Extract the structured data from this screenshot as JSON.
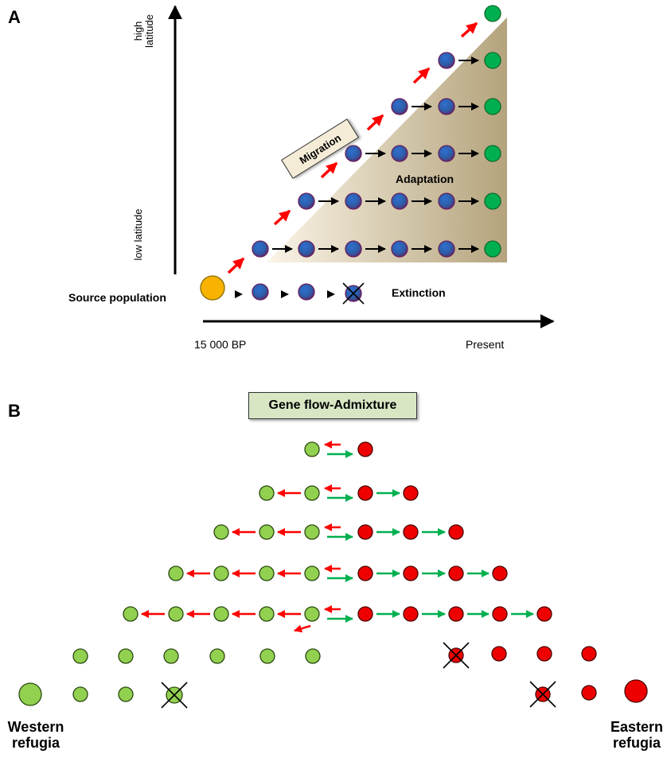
{
  "panel_a": {
    "letter": "A",
    "high_latitude": "high latitude",
    "low_latitude": "low latitude",
    "migration_label": "Migration",
    "adaptation_label": "Adaptation",
    "source_label": "Source population",
    "extinction_label": "Extinction",
    "time_start": "15 000 BP",
    "time_end": "Present"
  },
  "panel_b": {
    "letter": "B",
    "title": "Gene flow-Admixture",
    "west_label": "Western refugia",
    "east_label": "Eastern refugia"
  },
  "colors": {
    "source": "#f7b300",
    "blue": "#2d5da8",
    "blue_edge": "#6b1e5a",
    "green_a": "#00b050",
    "green_b": "#92d050",
    "red": "#ee0000",
    "arrow_red": "#ff0000",
    "arrow_green": "#00b050",
    "gradient_light": "#fbf5e8",
    "gradient_dark": "#b4a37c"
  }
}
